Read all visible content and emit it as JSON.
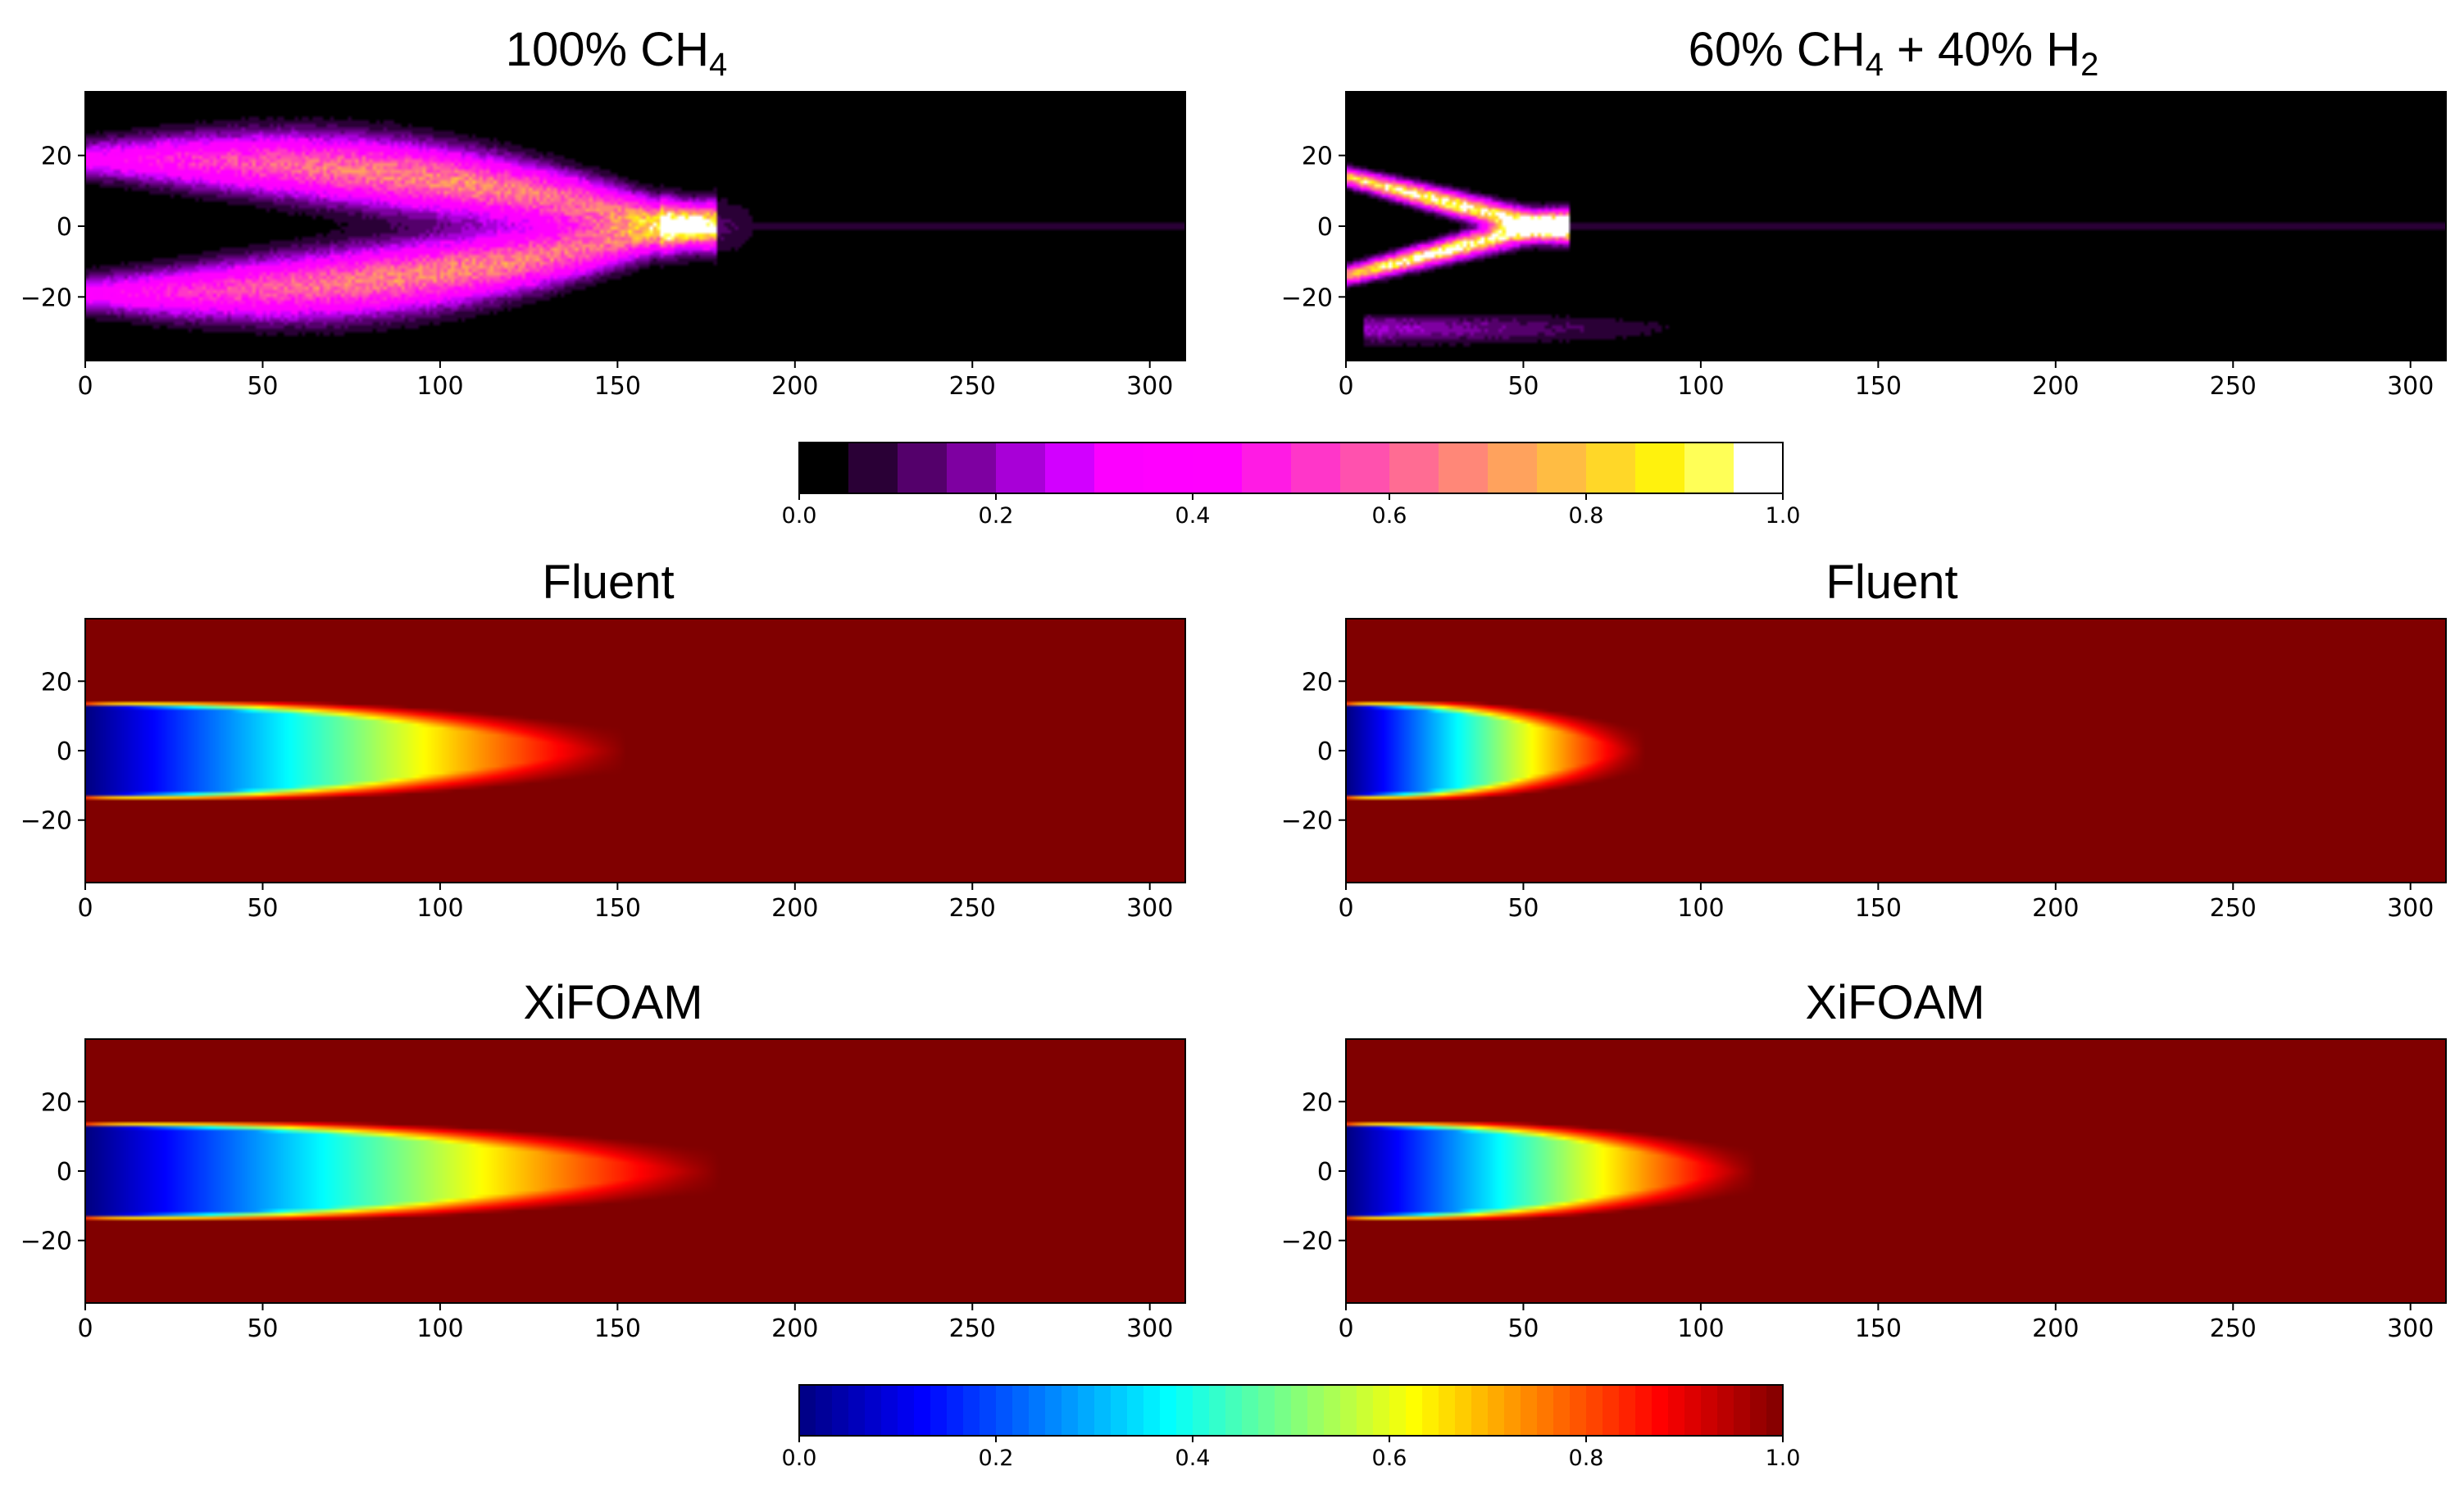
{
  "chart_data": [
    {
      "type": "heatmap",
      "panel": "top-left",
      "title_main": "100% CH",
      "title_sub": "4",
      "title_tail": "",
      "field": "exp-ch4",
      "colormap": "gnuplot2",
      "xlim": [
        0,
        310
      ],
      "ylim": [
        -38,
        38
      ],
      "xticks": [
        "0",
        "50",
        "100",
        "150",
        "200",
        "250",
        "300"
      ],
      "xtick_values": [
        0,
        50,
        100,
        150,
        200,
        250,
        300
      ],
      "yticks": [
        "20",
        "0",
        "−20"
      ],
      "ytick_values": [
        20,
        0,
        -20
      ],
      "flame_tip_x": 170
    },
    {
      "type": "heatmap",
      "panel": "top-right",
      "title_main": "60% CH",
      "title_sub": "4",
      "title_tail": " + 40% H",
      "title_sub2": "2",
      "field": "exp-h2",
      "colormap": "gnuplot2",
      "xlim": [
        0,
        310
      ],
      "ylim": [
        -38,
        38
      ],
      "xticks": [
        "0",
        "50",
        "100",
        "150",
        "200",
        "250",
        "300"
      ],
      "xtick_values": [
        0,
        50,
        100,
        150,
        200,
        250,
        300
      ],
      "yticks": [
        "20",
        "0",
        "−20"
      ],
      "ytick_values": [
        20,
        0,
        -20
      ],
      "flame_tip_x": 55
    },
    {
      "type": "heatmap",
      "panel": "middle-left",
      "title_main": "Fluent",
      "field": "sim",
      "colormap": "jet",
      "xlim": [
        0,
        310
      ],
      "ylim": [
        -38,
        38
      ],
      "xticks": [
        "0",
        "50",
        "100",
        "150",
        "200",
        "250",
        "300"
      ],
      "xtick_values": [
        0,
        50,
        100,
        150,
        200,
        250,
        300
      ],
      "yticks": [
        "20",
        "0",
        "−20"
      ],
      "ytick_values": [
        20,
        0,
        -20
      ],
      "flame_length": 145
    },
    {
      "type": "heatmap",
      "panel": "middle-right",
      "title_main": "Fluent",
      "field": "sim",
      "colormap": "jet",
      "xlim": [
        0,
        310
      ],
      "ylim": [
        -38,
        38
      ],
      "xticks": [
        "0",
        "50",
        "100",
        "150",
        "200",
        "250",
        "300"
      ],
      "xtick_values": [
        0,
        50,
        100,
        150,
        200,
        250,
        300
      ],
      "yticks": [
        "20",
        "0",
        "−20"
      ],
      "ytick_values": [
        20,
        0,
        -20
      ],
      "flame_length": 80
    },
    {
      "type": "heatmap",
      "panel": "bottom-left",
      "title_main": "XiFOAM",
      "field": "sim",
      "colormap": "jet",
      "xlim": [
        0,
        310
      ],
      "ylim": [
        -38,
        38
      ],
      "xticks": [
        "0",
        "50",
        "100",
        "150",
        "200",
        "250",
        "300"
      ],
      "xtick_values": [
        0,
        50,
        100,
        150,
        200,
        250,
        300
      ],
      "yticks": [
        "20",
        "0",
        "−20"
      ],
      "ytick_values": [
        20,
        0,
        -20
      ],
      "flame_length": 170
    },
    {
      "type": "heatmap",
      "panel": "bottom-right",
      "title_main": "XiFOAM",
      "field": "sim",
      "colormap": "jet",
      "xlim": [
        0,
        310
      ],
      "ylim": [
        -38,
        38
      ],
      "xticks": [
        "0",
        "50",
        "100",
        "150",
        "200",
        "250",
        "300"
      ],
      "xtick_values": [
        0,
        50,
        100,
        150,
        200,
        250,
        300
      ],
      "yticks": [
        "20",
        "0",
        "−20"
      ],
      "ytick_values": [
        20,
        0,
        -20
      ],
      "flame_length": 110
    }
  ],
  "colorbars": [
    {
      "name": "experiment-colorbar",
      "colormap": "gnuplot2",
      "levels": 20,
      "range": [
        0.0,
        1.0
      ],
      "ticks": [
        "0.0",
        "0.2",
        "0.4",
        "0.6",
        "0.8",
        "1.0"
      ],
      "tick_values": [
        0.0,
        0.2,
        0.4,
        0.6,
        0.8,
        1.0
      ]
    },
    {
      "name": "simulation-colorbar",
      "colormap": "jet",
      "levels": 60,
      "range": [
        0.0,
        1.0
      ],
      "ticks": [
        "0.0",
        "0.2",
        "0.4",
        "0.6",
        "0.8",
        "1.0"
      ],
      "tick_values": [
        0.0,
        0.2,
        0.4,
        0.6,
        0.8,
        1.0
      ]
    }
  ]
}
